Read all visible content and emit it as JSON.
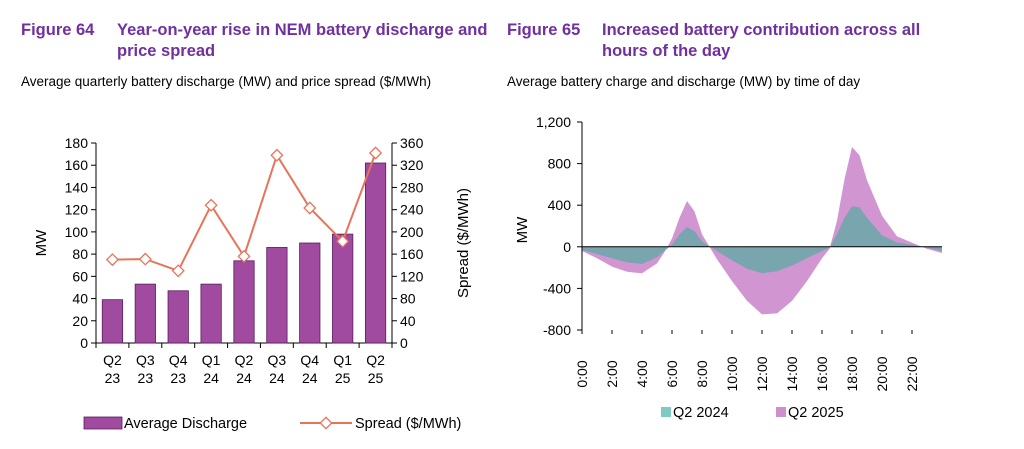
{
  "fig64": {
    "number": "Figure 64",
    "title": "Year-on-year rise in NEM battery discharge and price spread",
    "subtitle": "Average quarterly battery discharge (MW) and price spread ($/MWh)"
  },
  "fig65": {
    "number": "Figure 65",
    "title": "Increased battery contribution across all hours of the day",
    "subtitle": "Average battery charge and discharge (MW) by time of day"
  },
  "colors": {
    "bar": "#a04aa0",
    "bar_edge": "#5a1f5a",
    "line": "#e8735a",
    "q2024": "#7fcbc4",
    "q2025": "#cf8fcf",
    "overlap": "#6aa8a8"
  },
  "chart_data": [
    {
      "type": "bar",
      "categories": [
        [
          "Q2",
          "23"
        ],
        [
          "Q3",
          "23"
        ],
        [
          "Q4",
          "23"
        ],
        [
          "Q1",
          "24"
        ],
        [
          "Q2",
          "24"
        ],
        [
          "Q3",
          "24"
        ],
        [
          "Q4",
          "24"
        ],
        [
          "Q1",
          "25"
        ],
        [
          "Q2",
          "25"
        ]
      ],
      "series": [
        {
          "name": "Average Discharge",
          "axis": "left",
          "values": [
            39,
            53,
            47,
            53,
            74,
            86,
            90,
            98,
            162
          ]
        },
        {
          "name": "Spread ($/MWh)",
          "axis": "right",
          "type": "line",
          "values": [
            150,
            151,
            130,
            248,
            156,
            338,
            243,
            183,
            342
          ]
        }
      ],
      "ylabel": "MW",
      "ylabel_right": "Spread ($/MWh)",
      "ylim": [
        0,
        180
      ],
      "yticks": [
        0,
        20,
        40,
        60,
        80,
        100,
        120,
        140,
        160,
        180
      ],
      "ylim_right": [
        0,
        360
      ],
      "yticks_right": [
        0,
        40,
        80,
        120,
        160,
        200,
        240,
        280,
        320,
        360
      ],
      "legend": "bottom"
    },
    {
      "type": "area",
      "x_ticks": [
        "0:00",
        "2:00",
        "4:00",
        "6:00",
        "8:00",
        "10:00",
        "12:00",
        "14:00",
        "16:00",
        "18:00",
        "20:00",
        "22:00"
      ],
      "ylabel": "MW",
      "ylim": [
        -800,
        1200
      ],
      "yticks": [
        -800,
        -400,
        0,
        400,
        800,
        1200
      ],
      "ytick_labels": [
        "-800",
        "-400",
        "0",
        "400",
        "800",
        "1,200"
      ],
      "xlim_hours": [
        0,
        24
      ],
      "series": [
        {
          "name": "Q2 2024",
          "x": [
            0,
            1,
            2,
            3,
            4,
            5,
            5.5,
            6,
            6.5,
            7,
            7.5,
            8,
            9,
            10,
            11,
            12,
            13,
            14,
            15,
            16,
            16.5,
            17,
            17.5,
            18,
            18.5,
            19,
            20,
            21,
            22,
            23,
            24
          ],
          "y": [
            -30,
            -70,
            -110,
            -150,
            -165,
            -100,
            -40,
            20,
            120,
            190,
            150,
            50,
            -40,
            -130,
            -210,
            -255,
            -235,
            -180,
            -110,
            -40,
            -10,
            120,
            280,
            390,
            380,
            280,
            110,
            40,
            20,
            -10,
            -40
          ]
        },
        {
          "name": "Q2 2025",
          "x": [
            0,
            1,
            2,
            3,
            4,
            5,
            5.5,
            6,
            6.5,
            7,
            7.5,
            8,
            9,
            10,
            11,
            12,
            13,
            14,
            15,
            16,
            16.5,
            17,
            17.5,
            18,
            18.5,
            19,
            20,
            21,
            22,
            23,
            24
          ],
          "y": [
            -40,
            -110,
            -190,
            -240,
            -255,
            -160,
            -50,
            80,
            280,
            440,
            340,
            120,
            -120,
            -330,
            -520,
            -650,
            -640,
            -520,
            -330,
            -110,
            -20,
            250,
            650,
            960,
            880,
            640,
            300,
            100,
            40,
            -20,
            -60
          ]
        }
      ],
      "legend": "bottom"
    }
  ]
}
